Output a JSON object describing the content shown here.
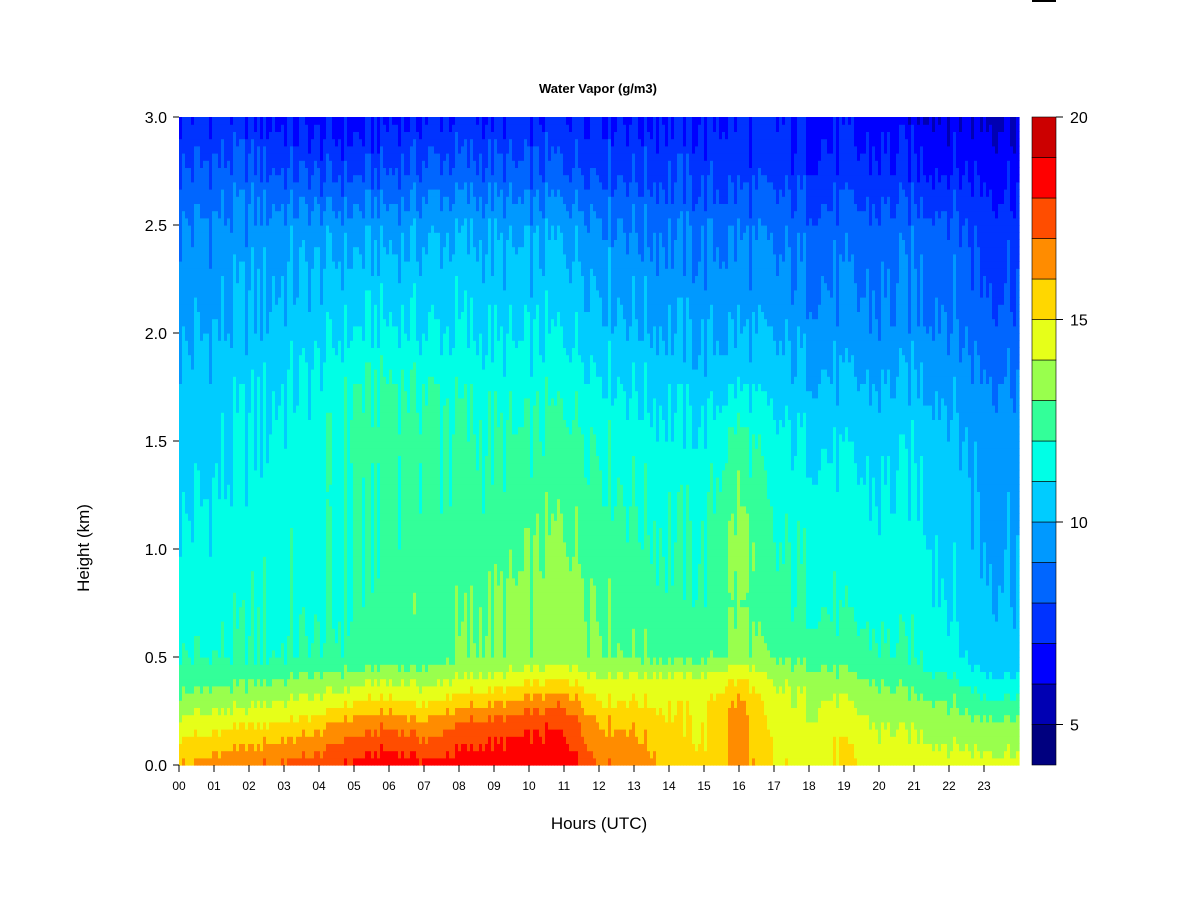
{
  "chart_data": {
    "type": "heatmap",
    "title": "Water Vapor (g/m3)",
    "xlabel": "Hours (UTC)",
    "ylabel": "Height (km)",
    "x_ticks": [
      "00",
      "01",
      "02",
      "03",
      "04",
      "05",
      "06",
      "07",
      "08",
      "09",
      "10",
      "11",
      "12",
      "13",
      "14",
      "15",
      "16",
      "17",
      "18",
      "19",
      "20",
      "21",
      "22",
      "23"
    ],
    "x_range": [
      0,
      24
    ],
    "y_ticks": [
      "0.0",
      "0.5",
      "1.0",
      "1.5",
      "2.0",
      "2.5",
      "3.0"
    ],
    "y_range": [
      0,
      3.0
    ],
    "colorbar": {
      "range": [
        4,
        20
      ],
      "ticks": [
        "5",
        "10",
        "15",
        "20"
      ],
      "levels": [
        4,
        5,
        6,
        7,
        8,
        9,
        10,
        11,
        12,
        13,
        14,
        15,
        16,
        17,
        18,
        19,
        20
      ],
      "colors": [
        "#00007f",
        "#0000b3",
        "#0000ff",
        "#0033ff",
        "#0066ff",
        "#0099ff",
        "#00ccff",
        "#00ffe6",
        "#33ff99",
        "#99ff4d",
        "#e6ff19",
        "#ffd700",
        "#ff8c00",
        "#ff4d00",
        "#ff0000",
        "#cc0000",
        "#800000"
      ]
    },
    "hours": [
      0,
      1,
      2,
      3,
      4,
      5,
      6,
      7,
      8,
      9,
      10,
      11,
      12,
      13,
      14,
      15,
      16,
      17,
      18,
      19,
      20,
      21,
      22,
      23,
      24
    ],
    "profiles_height_km": [
      0.0,
      0.1,
      0.2,
      0.3,
      0.4,
      0.5,
      0.75,
      1.0,
      1.25,
      1.5,
      1.75,
      2.0,
      2.25,
      2.5,
      2.75,
      3.0
    ],
    "values": [
      [
        16.0,
        15.2,
        14.2,
        13.2,
        12.5,
        12.0,
        11.5,
        11.2,
        10.8,
        10.5,
        10.3,
        9.8,
        9.5,
        9.0,
        8.0,
        7.0
      ],
      [
        16.5,
        15.5,
        14.5,
        13.5,
        12.6,
        12.0,
        11.6,
        11.3,
        11.0,
        10.8,
        10.5,
        10.0,
        9.6,
        9.2,
        8.2,
        7.2
      ],
      [
        16.8,
        15.8,
        14.8,
        13.6,
        12.8,
        12.0,
        11.8,
        11.6,
        11.3,
        11.0,
        10.8,
        10.2,
        9.8,
        9.3,
        8.3,
        7.0
      ],
      [
        17.2,
        16.2,
        15.0,
        14.0,
        13.0,
        12.0,
        11.8,
        11.8,
        11.5,
        11.3,
        11.0,
        10.4,
        10.0,
        9.5,
        8.0,
        6.8
      ],
      [
        17.5,
        16.5,
        15.5,
        14.2,
        13.2,
        12.1,
        11.7,
        11.7,
        11.5,
        11.5,
        11.3,
        10.6,
        10.2,
        9.4,
        7.8,
        6.5
      ],
      [
        18.2,
        17.5,
        16.3,
        14.8,
        13.5,
        12.3,
        12.0,
        12.0,
        12.0,
        12.3,
        12.0,
        11.0,
        10.4,
        9.5,
        7.8,
        6.5
      ],
      [
        18.8,
        17.8,
        16.8,
        15.2,
        13.8,
        12.5,
        12.5,
        12.3,
        12.3,
        12.5,
        12.2,
        11.2,
        10.5,
        9.6,
        8.0,
        6.8
      ],
      [
        18.3,
        17.2,
        16.0,
        14.8,
        13.5,
        12.5,
        12.8,
        12.5,
        12.2,
        12.4,
        12.0,
        11.0,
        10.5,
        9.7,
        8.3,
        7.0
      ],
      [
        18.5,
        17.8,
        17.0,
        15.5,
        14.0,
        13.0,
        12.8,
        12.5,
        12.2,
        12.2,
        11.8,
        11.0,
        10.6,
        9.8,
        8.3,
        7.2
      ],
      [
        18.8,
        18.0,
        17.2,
        15.8,
        14.2,
        13.2,
        13.0,
        12.6,
        12.3,
        12.0,
        11.6,
        10.8,
        10.4,
        9.7,
        8.2,
        7.0
      ],
      [
        18.8,
        18.2,
        17.5,
        16.2,
        14.5,
        13.2,
        13.2,
        12.8,
        12.5,
        12.0,
        11.5,
        10.8,
        10.3,
        9.5,
        8.0,
        7.0
      ],
      [
        18.8,
        18.3,
        17.8,
        16.8,
        15.0,
        13.5,
        13.8,
        13.2,
        12.8,
        12.5,
        11.8,
        11.0,
        10.5,
        9.8,
        8.2,
        7.2
      ],
      [
        17.0,
        16.5,
        16.0,
        15.0,
        14.2,
        13.2,
        13.0,
        12.6,
        12.3,
        12.0,
        11.3,
        10.5,
        10.0,
        9.3,
        8.0,
        7.2
      ],
      [
        16.8,
        16.3,
        15.8,
        15.0,
        14.3,
        13.0,
        12.5,
        12.3,
        12.0,
        11.5,
        11.0,
        10.2,
        9.6,
        9.0,
        7.8,
        7.0
      ],
      [
        15.8,
        15.5,
        15.2,
        14.8,
        14.3,
        12.8,
        12.3,
        12.0,
        11.8,
        11.3,
        10.8,
        10.0,
        9.5,
        8.8,
        7.8,
        7.0
      ],
      [
        15.3,
        15.0,
        14.8,
        14.6,
        14.2,
        12.6,
        12.2,
        12.0,
        11.6,
        11.2,
        10.5,
        9.8,
        9.3,
        8.7,
        7.6,
        7.0
      ],
      [
        16.5,
        16.5,
        16.5,
        16.2,
        15.0,
        13.5,
        13.0,
        13.5,
        13.0,
        12.5,
        11.0,
        10.0,
        9.5,
        8.8,
        7.6,
        7.2
      ],
      [
        15.0,
        14.8,
        14.5,
        14.2,
        13.8,
        12.8,
        12.2,
        12.0,
        11.6,
        11.2,
        10.5,
        9.8,
        9.2,
        8.6,
        7.5,
        7.0
      ],
      [
        14.6,
        14.4,
        14.2,
        14.0,
        13.6,
        12.6,
        12.0,
        11.8,
        11.5,
        11.0,
        10.3,
        9.6,
        9.0,
        8.5,
        7.4,
        6.8
      ],
      [
        15.2,
        15.0,
        14.6,
        14.0,
        13.2,
        12.5,
        11.8,
        11.5,
        11.3,
        10.8,
        10.1,
        9.4,
        8.9,
        8.4,
        7.3,
        6.6
      ],
      [
        14.6,
        14.2,
        13.8,
        13.5,
        12.8,
        12.2,
        11.6,
        11.3,
        11.0,
        10.6,
        10.0,
        9.2,
        8.8,
        8.3,
        7.2,
        6.5
      ],
      [
        14.8,
        14.2,
        13.8,
        13.3,
        12.5,
        12.0,
        11.6,
        11.5,
        11.2,
        10.8,
        10.2,
        9.4,
        9.0,
        8.5,
        7.2,
        6.3
      ],
      [
        14.4,
        14.0,
        13.5,
        13.0,
        12.2,
        11.5,
        11.0,
        10.8,
        10.6,
        10.4,
        9.8,
        9.2,
        8.8,
        8.4,
        7.0,
        6.2
      ],
      [
        14.4,
        13.8,
        13.2,
        12.2,
        11.2,
        10.4,
        10.2,
        10.0,
        9.8,
        9.6,
        9.2,
        8.5,
        8.0,
        7.6,
        6.8,
        6.0
      ],
      [
        14.4,
        13.8,
        13.2,
        12.2,
        11.2,
        10.4,
        10.2,
        10.0,
        9.8,
        9.6,
        9.2,
        8.5,
        8.0,
        7.6,
        6.8,
        6.0
      ]
    ]
  }
}
